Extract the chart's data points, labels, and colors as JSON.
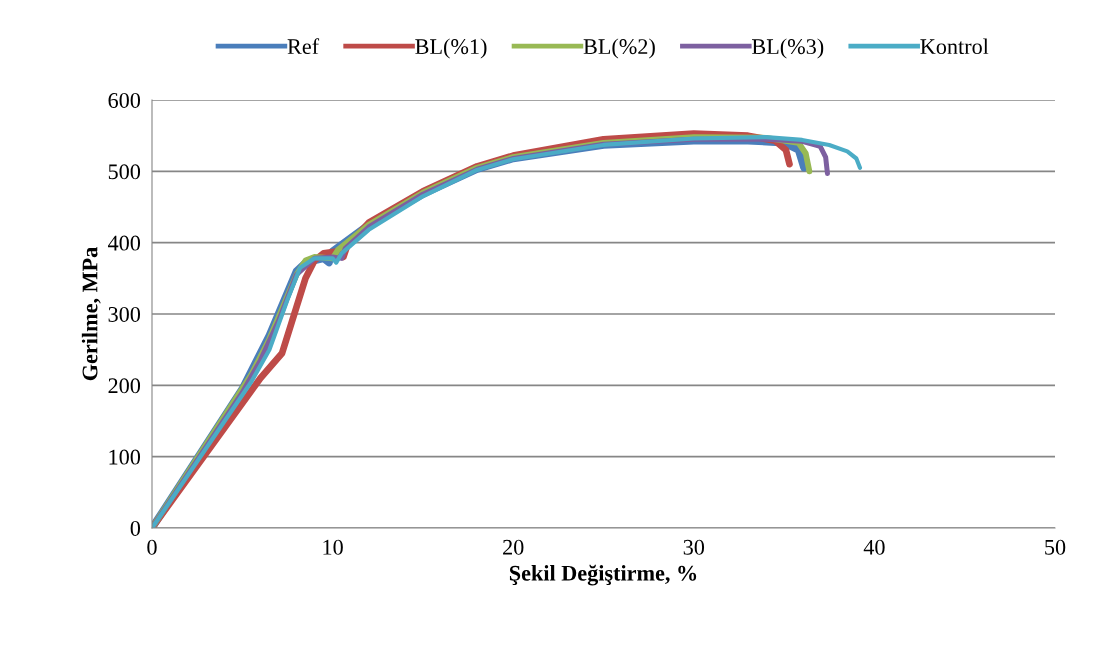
{
  "chart_data": {
    "type": "line",
    "xlabel": "Şekil Değiştirme, %",
    "ylabel": "Gerilme, MPa",
    "xlim": [
      0,
      50
    ],
    "ylim": [
      0,
      600
    ],
    "xticks": [
      0,
      10,
      20,
      30,
      40,
      50
    ],
    "yticks": [
      0,
      100,
      200,
      300,
      400,
      500,
      600
    ],
    "grid": "y",
    "legend": "top",
    "marker": "none",
    "line_style": "solid",
    "series": [
      {
        "name": "Ref",
        "color": "#4a7ebb",
        "x": [
          0,
          5,
          6.5,
          8,
          8.5,
          9.5,
          9.8,
          10,
          12,
          15,
          18,
          20,
          25,
          30,
          33,
          35,
          35.8,
          36.1
        ],
        "values": [
          0,
          195,
          270,
          360,
          372,
          378,
          372,
          388,
          425,
          468,
          503,
          518,
          537,
          543,
          543,
          540,
          530,
          505
        ]
      },
      {
        "name": "BL(%1)",
        "color": "#be4b48",
        "x": [
          0,
          6,
          7.2,
          8.5,
          9,
          9.5,
          10.3,
          10.6,
          10.8,
          12,
          15,
          18,
          20,
          25,
          30,
          33,
          34.5,
          35.1,
          35.3
        ],
        "values": [
          0,
          210,
          245,
          350,
          375,
          385,
          388,
          380,
          395,
          428,
          472,
          507,
          522,
          545,
          553,
          550,
          543,
          530,
          510
        ]
      },
      {
        "name": "BL(%2)",
        "color": "#98b954",
        "x": [
          0,
          5.5,
          6.5,
          8,
          8.5,
          9,
          10,
          10.3,
          12,
          15,
          18,
          20,
          25,
          30,
          34,
          35.8,
          36.2,
          36.4
        ],
        "values": [
          0,
          215,
          265,
          355,
          375,
          380,
          378,
          390,
          425,
          470,
          505,
          520,
          540,
          548,
          547,
          540,
          525,
          500
        ]
      },
      {
        "name": "BL(%3)",
        "color": "#7d60a0",
        "x": [
          0,
          5,
          6,
          7,
          8,
          9,
          10,
          10.5,
          10.7,
          12,
          15,
          18,
          20,
          25,
          30,
          34,
          36,
          37,
          37.3,
          37.4
        ],
        "values": [
          0,
          190,
          235,
          290,
          355,
          378,
          380,
          378,
          392,
          422,
          468,
          503,
          518,
          538,
          545,
          545,
          542,
          535,
          520,
          497
        ]
      },
      {
        "name": "Kontrol",
        "color": "#4bacc6",
        "x": [
          0,
          5.5,
          6.5,
          7.5,
          8.2,
          9,
          10,
          10.2,
          10.5,
          12,
          15,
          18,
          20,
          25,
          30,
          34,
          36,
          37.5,
          38.5,
          39,
          39.2
        ],
        "values": [
          0,
          205,
          250,
          320,
          365,
          378,
          378,
          372,
          385,
          418,
          465,
          502,
          517,
          537,
          546,
          548,
          544,
          537,
          528,
          518,
          505
        ]
      }
    ]
  }
}
